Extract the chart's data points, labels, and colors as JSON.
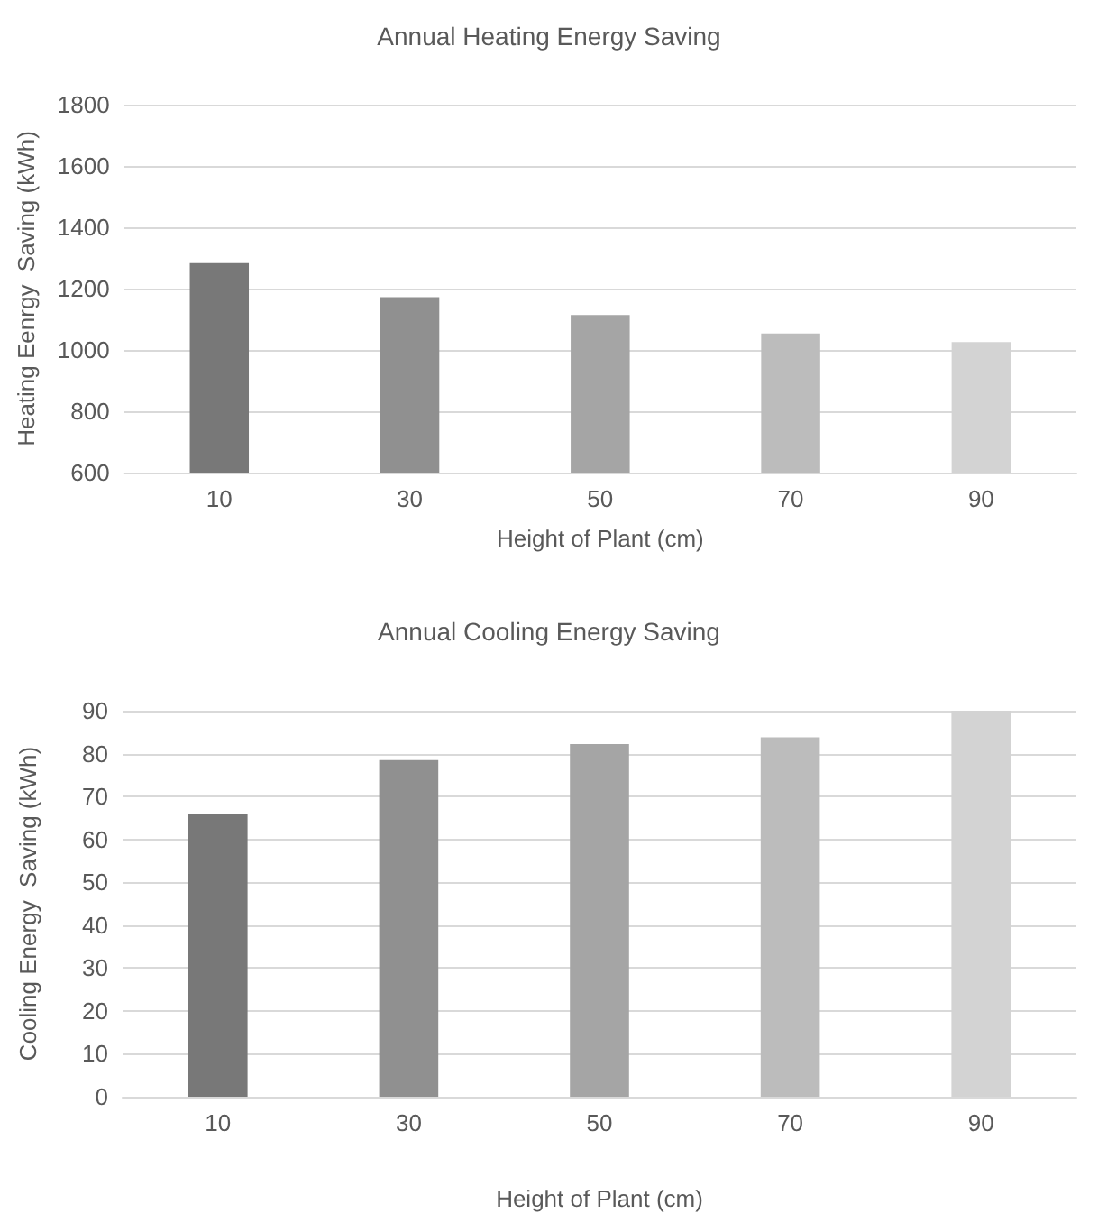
{
  "chart_data": [
    {
      "type": "bar",
      "title": "Annual Heating Energy Saving",
      "xlabel": "Height of Plant (cm)",
      "ylabel": "Heating Eenrgy  Saving (kWh)",
      "categories": [
        "10",
        "30",
        "50",
        "70",
        "90"
      ],
      "values": [
        1283,
        1172,
        1114,
        1054,
        1026
      ],
      "colors": [
        "#787878",
        "#909090",
        "#a5a5a5",
        "#bcbcbc",
        "#d3d3d3"
      ],
      "ylim": [
        600,
        1800
      ],
      "yticks": [
        600,
        800,
        1000,
        1200,
        1400,
        1600,
        1800
      ],
      "grid": "y"
    },
    {
      "type": "bar",
      "title": "Annual Cooling Energy Saving",
      "xlabel": "Height of Plant (cm)",
      "ylabel": "Cooling Energy  Saving (kWh)",
      "categories": [
        "10",
        "30",
        "50",
        "70",
        "90"
      ],
      "values": [
        65.8,
        78.5,
        82.2,
        83.8,
        90
      ],
      "colors": [
        "#787878",
        "#909090",
        "#a5a5a5",
        "#bcbcbc",
        "#d3d3d3"
      ],
      "ylim": [
        0,
        90
      ],
      "yticks": [
        0,
        10,
        20,
        30,
        40,
        50,
        60,
        70,
        80,
        90
      ],
      "grid": "y"
    }
  ]
}
